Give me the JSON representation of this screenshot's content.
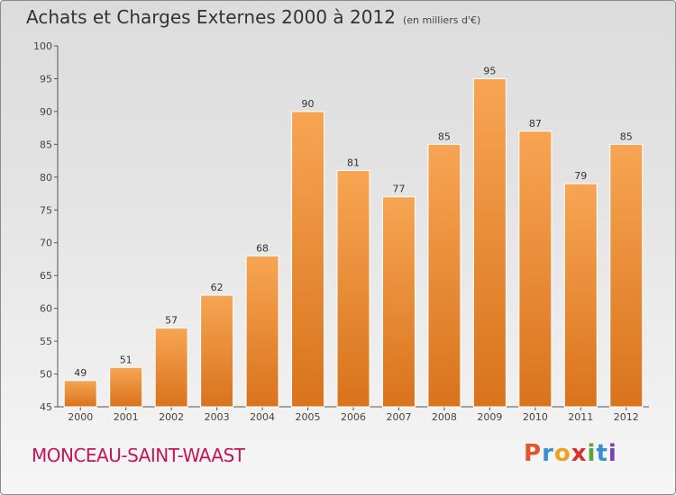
{
  "header": {
    "title": "Achats et Charges Externes 2000 à 2012",
    "subtitle": "(en milliers d'€)"
  },
  "footer": {
    "commune": "MONCEAU-SAINT-WAAST",
    "logo_letters": [
      "P",
      "r",
      "o",
      "x",
      "i",
      "t",
      "i"
    ],
    "logo_colors": [
      "#e2542b",
      "#3a8fd1",
      "#f0a21c",
      "#d9322e",
      "#5aa43b",
      "#3a8fd1",
      "#7a3fb5"
    ]
  },
  "colors": {
    "bar_top": "#f7a553",
    "bar_bottom": "#d9731c",
    "bar_stroke": "#ffffff"
  },
  "chart_data": {
    "type": "bar",
    "categories": [
      "2000",
      "2001",
      "2002",
      "2003",
      "2004",
      "2005",
      "2006",
      "2007",
      "2008",
      "2009",
      "2010",
      "2011",
      "2012"
    ],
    "values": [
      49,
      51,
      57,
      62,
      68,
      90,
      81,
      77,
      85,
      95,
      87,
      79,
      85
    ],
    "ylim": [
      45,
      100
    ],
    "yticks": [
      45,
      50,
      55,
      60,
      65,
      70,
      75,
      80,
      85,
      90,
      95,
      100
    ],
    "grid": false,
    "data_labels": true
  }
}
